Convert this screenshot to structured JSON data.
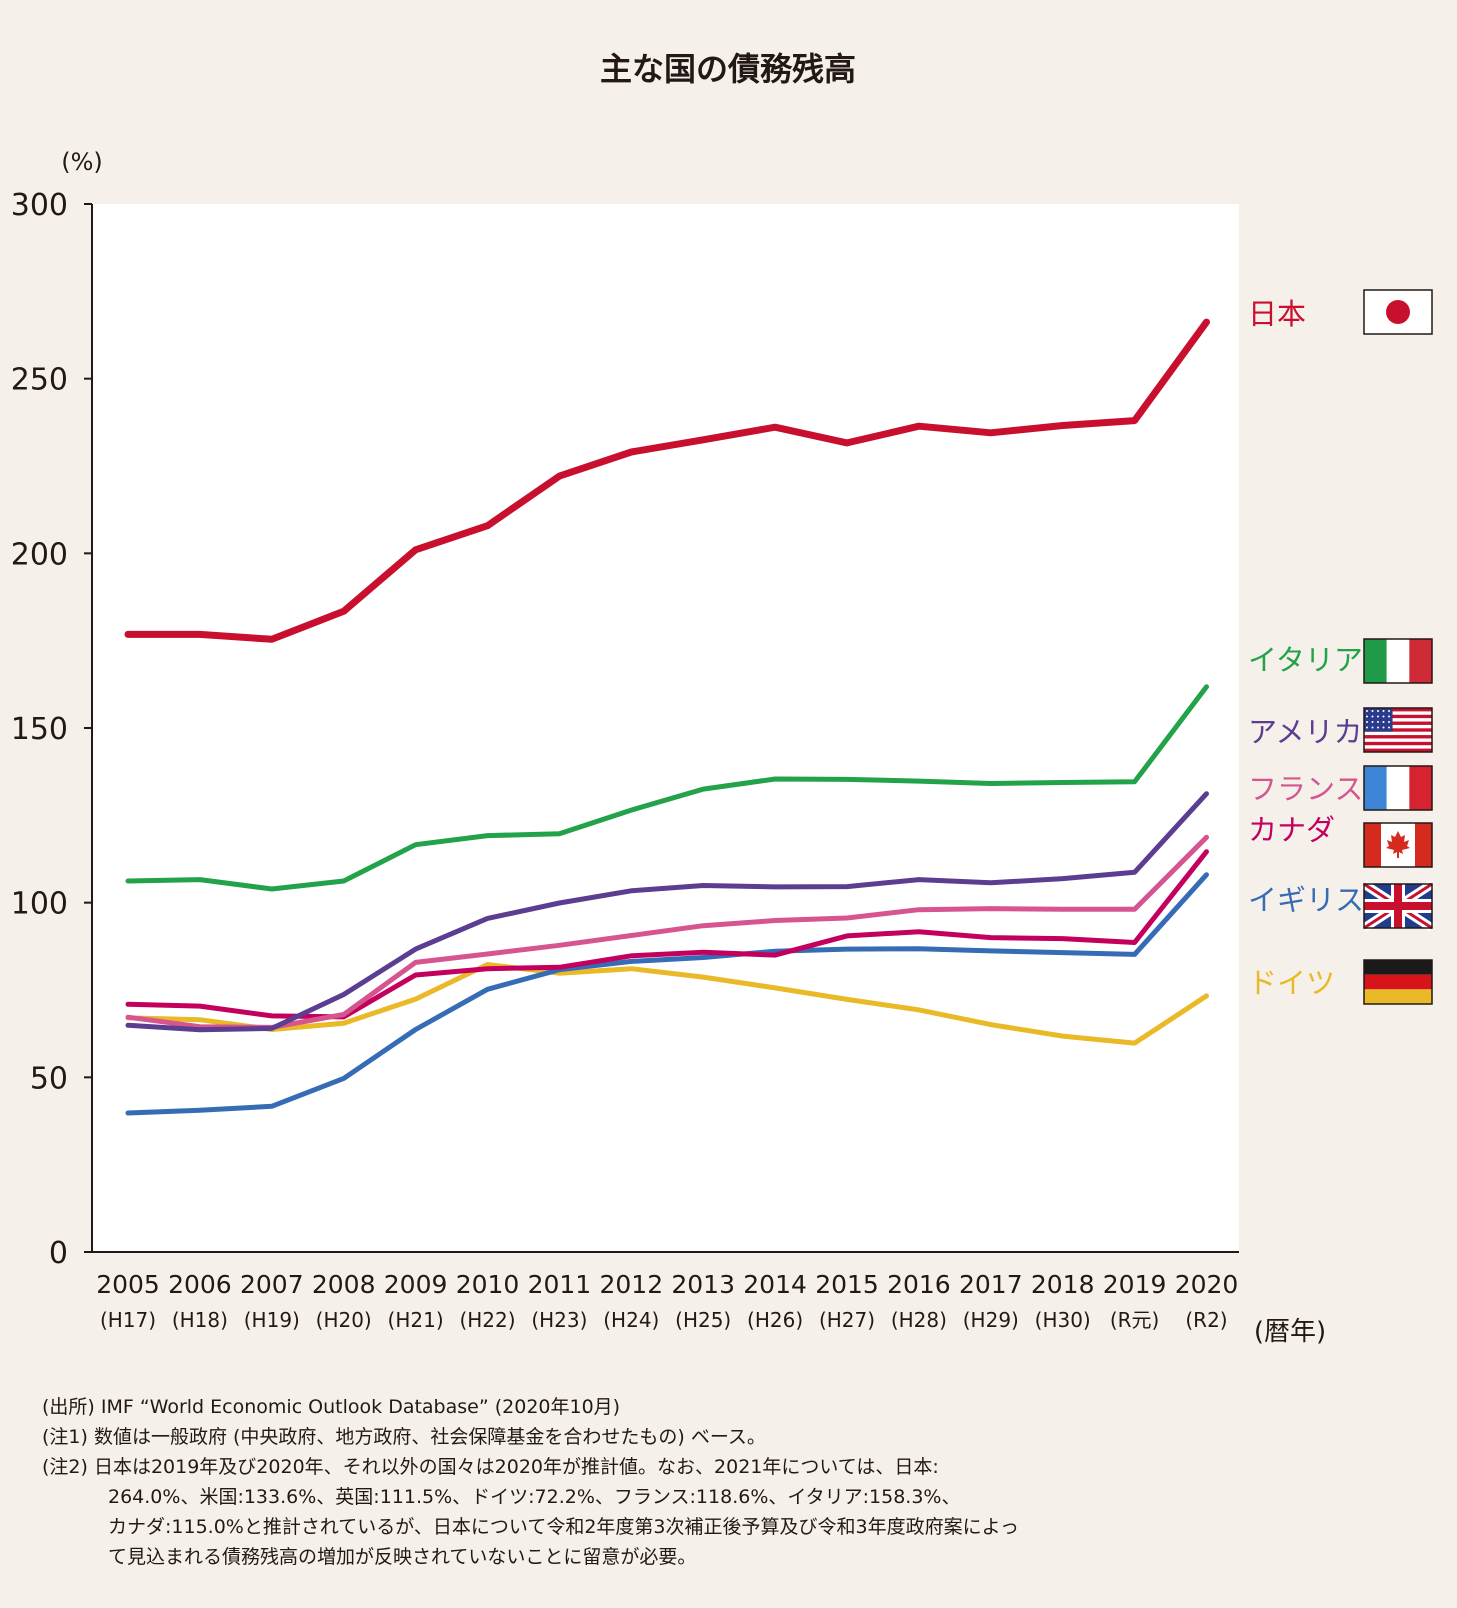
{
  "chart_data": {
    "type": "line",
    "title": "主な国の債務残高",
    "ylabel": "(%)",
    "xlabel": "(暦年)",
    "ylim": [
      0,
      300
    ],
    "yticks": [
      "0",
      "50",
      "100",
      "150",
      "200",
      "250",
      "300"
    ],
    "grid": false,
    "legend": "right",
    "categories": [
      "2005",
      "2006",
      "2007",
      "2008",
      "2009",
      "2010",
      "2011",
      "2012",
      "2013",
      "2014",
      "2015",
      "2016",
      "2017",
      "2018",
      "2019",
      "2020"
    ],
    "categories_sub": [
      "(H17)",
      "(H18)",
      "(H19)",
      "(H20)",
      "(H21)",
      "(H22)",
      "(H23)",
      "(H24)",
      "(H25)",
      "(H26)",
      "(H27)",
      "(H28)",
      "(H29)",
      "(H30)",
      "(R元)",
      "(R2)"
    ],
    "series": [
      {
        "name": "日本",
        "color": "#c8102e",
        "flag": "japan-flag-icon",
        "values": [
          176.8,
          176.8,
          175.4,
          183.4,
          201.0,
          207.9,
          222.1,
          229.0,
          232.5,
          236.1,
          231.6,
          236.4,
          234.5,
          236.6,
          238.0,
          266.2
        ]
      },
      {
        "name": "イタリア",
        "color": "#22a249",
        "flag": "italy-flag-icon",
        "values": [
          106.2,
          106.6,
          103.9,
          106.2,
          116.6,
          119.2,
          119.7,
          126.5,
          132.5,
          135.4,
          135.3,
          134.8,
          134.1,
          134.4,
          134.6,
          161.8
        ]
      },
      {
        "name": "アメリカ",
        "color": "#5b3d92",
        "flag": "usa-flag-icon",
        "values": [
          64.9,
          63.6,
          64.0,
          73.7,
          86.7,
          95.5,
          99.9,
          103.4,
          104.9,
          104.5,
          104.6,
          106.6,
          105.7,
          106.9,
          108.7,
          131.2
        ]
      },
      {
        "name": "フランス",
        "color": "#d6558f",
        "flag": "france-flag-icon",
        "values": [
          67.2,
          64.5,
          64.3,
          68.0,
          82.9,
          85.3,
          87.8,
          90.6,
          93.4,
          94.9,
          95.6,
          98.0,
          98.3,
          98.1,
          98.1,
          118.7
        ]
      },
      {
        "name": "カナダ",
        "color": "#c4005f",
        "flag": "canada-flag-icon",
        "values": [
          70.9,
          70.4,
          67.6,
          67.3,
          79.3,
          81.1,
          81.5,
          84.8,
          85.8,
          85.0,
          90.5,
          91.7,
          90.0,
          89.7,
          88.6,
          114.6
        ]
      },
      {
        "name": "イギリス",
        "color": "#356cb5",
        "flag": "uk-flag-icon",
        "values": [
          39.8,
          40.6,
          41.7,
          49.7,
          63.7,
          75.2,
          80.8,
          83.2,
          84.3,
          86.1,
          86.7,
          86.8,
          86.2,
          85.7,
          85.2,
          108.0
        ]
      },
      {
        "name": "ドイツ",
        "color": "#e9b928",
        "flag": "germany-flag-icon",
        "values": [
          67.0,
          66.5,
          63.7,
          65.5,
          72.4,
          82.3,
          79.8,
          81.1,
          78.7,
          75.6,
          72.3,
          69.3,
          65.1,
          61.8,
          59.8,
          73.3
        ]
      }
    ]
  },
  "notes": {
    "source": "(出所) IMF “World Economic Outlook Database” (2020年10月)",
    "note1": "(注1) 数値は一般政府 (中央政府、地方政府、社会保障基金を合わせたもの) ベース。",
    "note2_line1": "(注2) 日本は2019年及び2020年、それ以外の国々は2020年が推計値。なお、2021年については、日本:",
    "note2_line2": "264.0%、米国:133.6%、英国:111.5%、ドイツ:72.2%、フランス:118.6%、イタリア:158.3%、",
    "note2_line3": "カナダ:115.0%と推計されているが、日本について令和2年度第3次補正後予算及び令和3年度政府案によっ",
    "note2_line4": "て見込まれる債務残高の増加が反映されていないことに留意が必要。"
  }
}
